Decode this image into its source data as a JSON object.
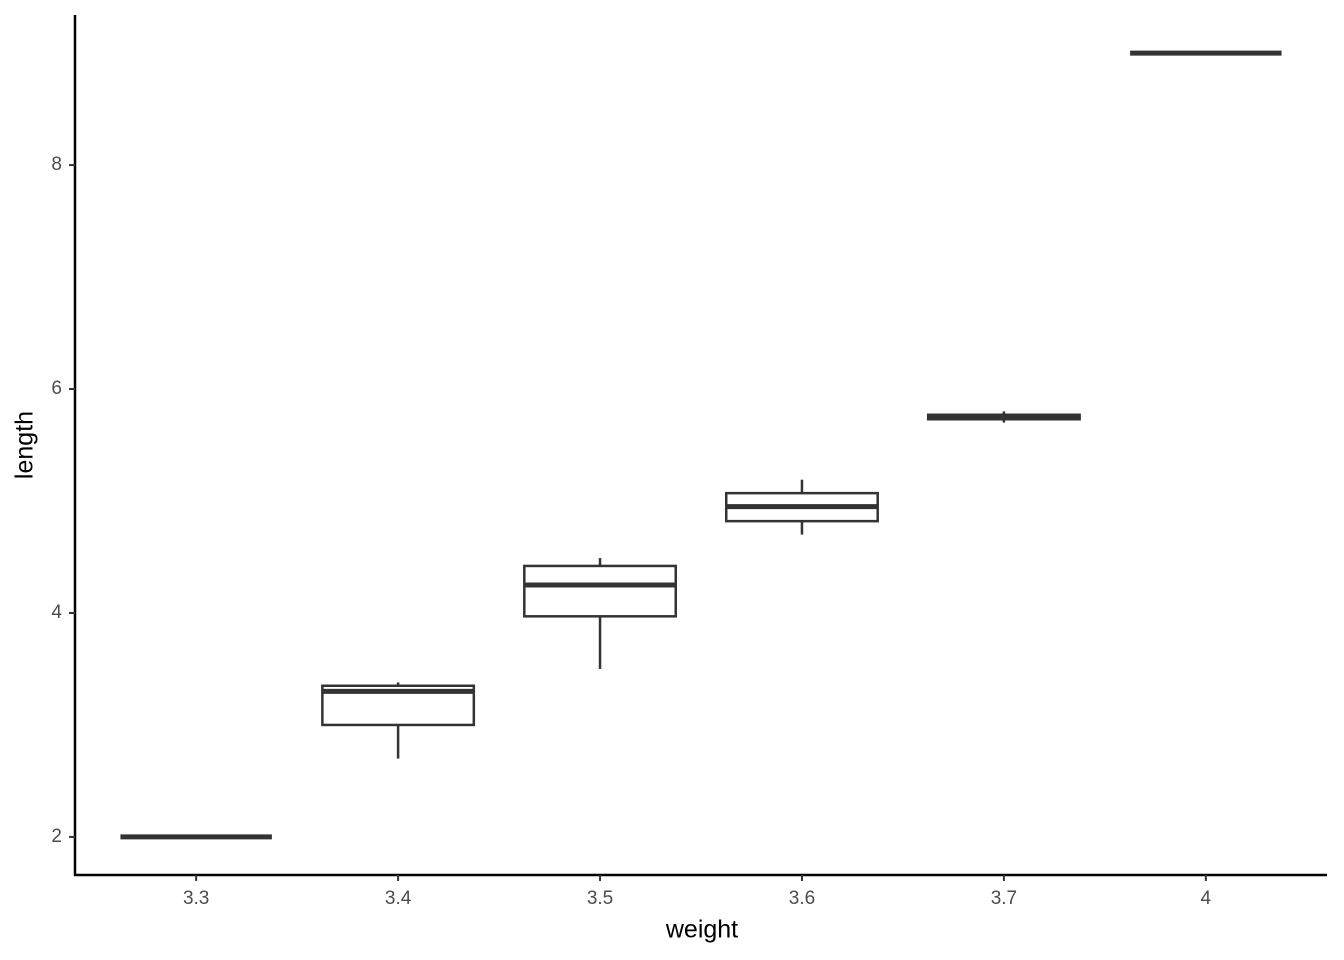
{
  "chart_data": {
    "type": "boxplot",
    "x_label": "weight",
    "y_label": "length",
    "categories": [
      "3.3",
      "3.4",
      "3.5",
      "3.6",
      "3.7",
      "4"
    ],
    "min": [
      2.0,
      2.7,
      3.5,
      4.7,
      5.7,
      9.0
    ],
    "q1": [
      2.0,
      3.0,
      3.97,
      4.82,
      5.73,
      9.0
    ],
    "median": [
      2.0,
      3.3,
      4.25,
      4.95,
      5.75,
      9.0
    ],
    "q3": [
      2.0,
      3.35,
      4.42,
      5.07,
      5.77,
      9.0
    ],
    "max": [
      2.0,
      3.38,
      4.49,
      5.19,
      5.8,
      9.0
    ],
    "color": "#333333",
    "ylim": [
      1.66,
      9.34
    ],
    "yticks": [
      2,
      4,
      6,
      8
    ],
    "grid": false
  }
}
